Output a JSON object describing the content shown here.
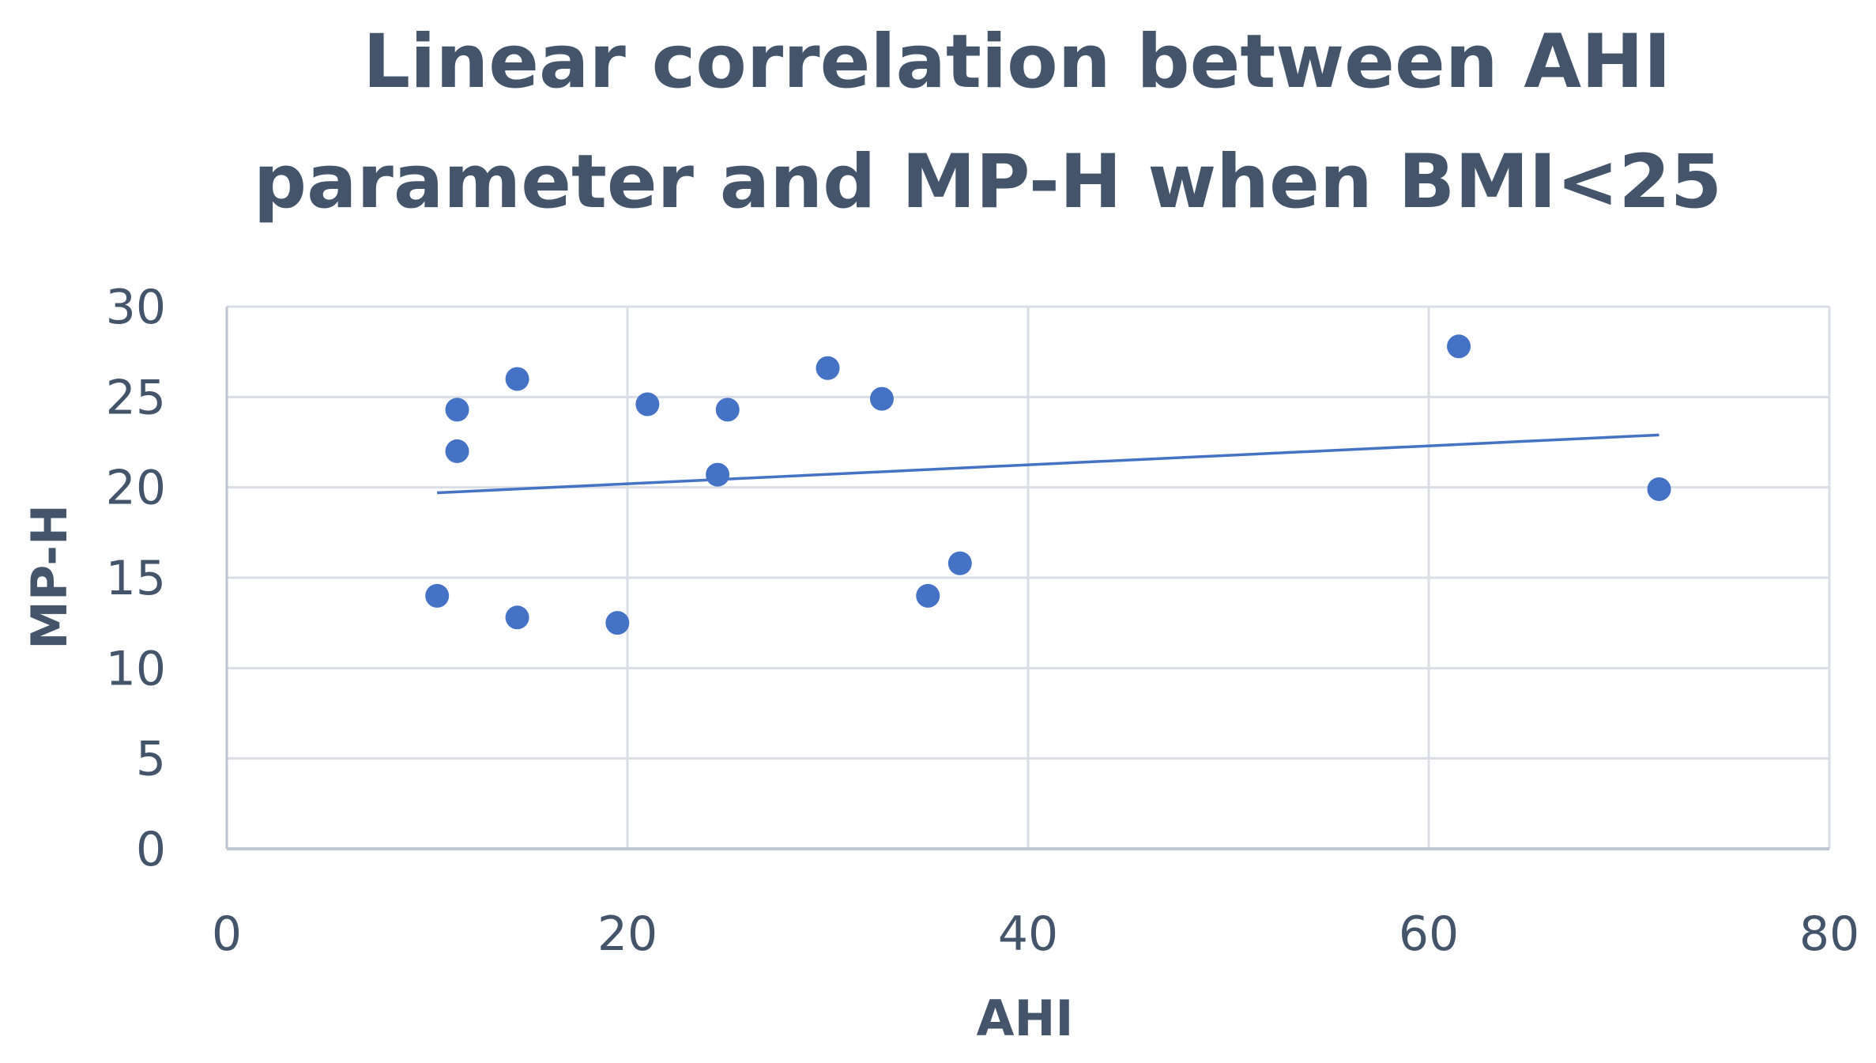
{
  "chart_data": {
    "type": "scatter",
    "title_lines": [
      "Linear correlation between AHI",
      "parameter and MP-H when BMI<25"
    ],
    "xlabel": "AHI",
    "ylabel": "MP-H",
    "xlim": [
      0,
      80
    ],
    "ylim": [
      0,
      30
    ],
    "x_ticks": [
      0,
      20,
      40,
      60,
      80
    ],
    "y_ticks": [
      0,
      5,
      10,
      15,
      20,
      25,
      30
    ],
    "grid": true,
    "legend": "none",
    "series": [
      {
        "points": [
          {
            "x": 10.5,
            "y": 14.0
          },
          {
            "x": 11.5,
            "y": 24.3
          },
          {
            "x": 11.5,
            "y": 22.0
          },
          {
            "x": 14.5,
            "y": 26.0
          },
          {
            "x": 14.5,
            "y": 12.8
          },
          {
            "x": 19.5,
            "y": 12.5
          },
          {
            "x": 21.0,
            "y": 24.6
          },
          {
            "x": 24.5,
            "y": 20.7
          },
          {
            "x": 25.0,
            "y": 24.3
          },
          {
            "x": 30.0,
            "y": 26.6
          },
          {
            "x": 32.7,
            "y": 24.9
          },
          {
            "x": 35.0,
            "y": 14.0
          },
          {
            "x": 36.6,
            "y": 15.8
          },
          {
            "x": 61.5,
            "y": 27.8
          },
          {
            "x": 71.5,
            "y": 19.9
          }
        ],
        "color": "#4472c4"
      }
    ],
    "trendline": {
      "type": "linear",
      "x_start": 10.5,
      "y_start": 19.7,
      "x_end": 71.5,
      "y_end": 22.9,
      "color": "#4472c4"
    },
    "colors": {
      "text": "#44546a",
      "grid": "#d9dde6",
      "axis": "#bfc6d3"
    }
  }
}
